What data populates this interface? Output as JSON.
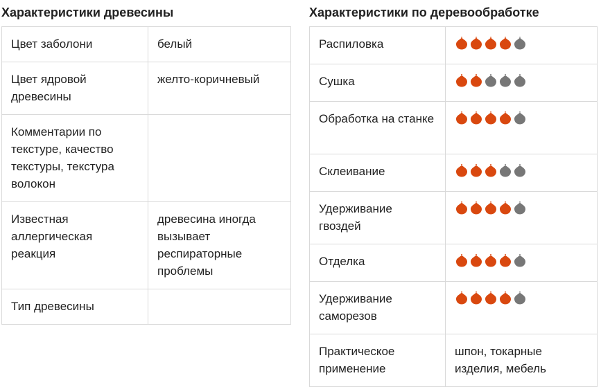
{
  "left": {
    "title": "Характеристики древесины",
    "rows": [
      {
        "label": "Цвет заболони",
        "value": "белый"
      },
      {
        "label": "Цвет ядровой древесины",
        "value": "желто-коричневый"
      },
      {
        "label": "Комментарии по текстуре, качество текстуры, текстура волокон",
        "value": ""
      },
      {
        "label": "Известная аллергическая реакция",
        "value": "древесина иногда вызывает респираторные проблемы"
      },
      {
        "label": "Тип древесины",
        "value": ""
      }
    ]
  },
  "right": {
    "title": "Характеристики по деревообработке",
    "rating_max": 5,
    "rows": [
      {
        "label": "Распиловка",
        "rating": 4
      },
      {
        "label": "Сушка",
        "rating": 2
      },
      {
        "label": "Обработка на станке",
        "rating": 4
      },
      {
        "label": "Склеивание",
        "rating": 3
      },
      {
        "label": "Удерживание гвоздей",
        "rating": 4
      },
      {
        "label": "Отделка",
        "rating": 4
      },
      {
        "label": "Удерживание саморезов",
        "rating": 4
      }
    ],
    "last_row": {
      "label": "Практическое применение",
      "value": "шпон, токарные изделия, мебель"
    }
  },
  "colors": {
    "leaf_active": "#d9480f",
    "leaf_inactive": "#777777",
    "border": "#d9d9d9",
    "text": "#222222"
  },
  "icons": {
    "rating": "leaf-icon"
  }
}
